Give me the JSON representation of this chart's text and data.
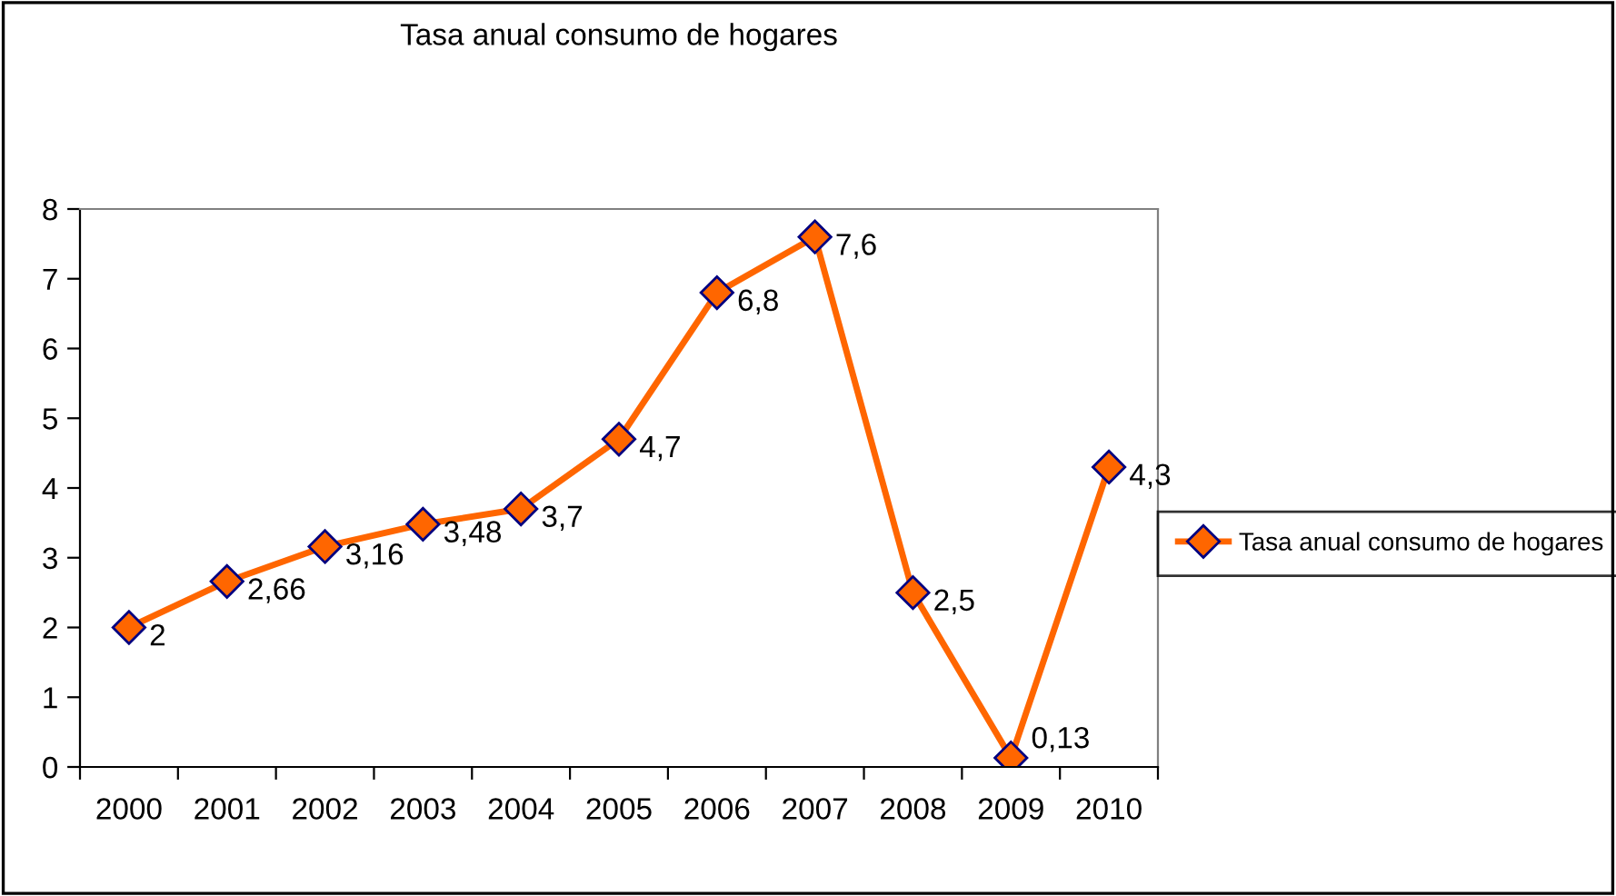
{
  "chart_data": {
    "type": "line",
    "title": "Tasa anual consumo de hogares",
    "categories": [
      "2000",
      "2001",
      "2002",
      "2003",
      "2004",
      "2005",
      "2006",
      "2007",
      "2008",
      "2009",
      "2010"
    ],
    "series": [
      {
        "name": "Tasa anual consumo de hogares",
        "color": "#ff6600",
        "values": [
          2,
          2.66,
          3.16,
          3.48,
          3.7,
          4.7,
          6.8,
          7.6,
          2.5,
          0.13,
          4.3
        ],
        "value_labels": [
          "2",
          "2,66",
          "3,16",
          "3,48",
          "3,7",
          "4,7",
          "6,8",
          "7,6",
          "2,5",
          "0,13",
          "4,3"
        ]
      }
    ],
    "ylim": [
      0,
      8
    ],
    "yticks": [
      0,
      1,
      2,
      3,
      4,
      5,
      6,
      7,
      8
    ],
    "grid": false,
    "legend": "right",
    "marker": "diamond",
    "line_style": "solid"
  }
}
